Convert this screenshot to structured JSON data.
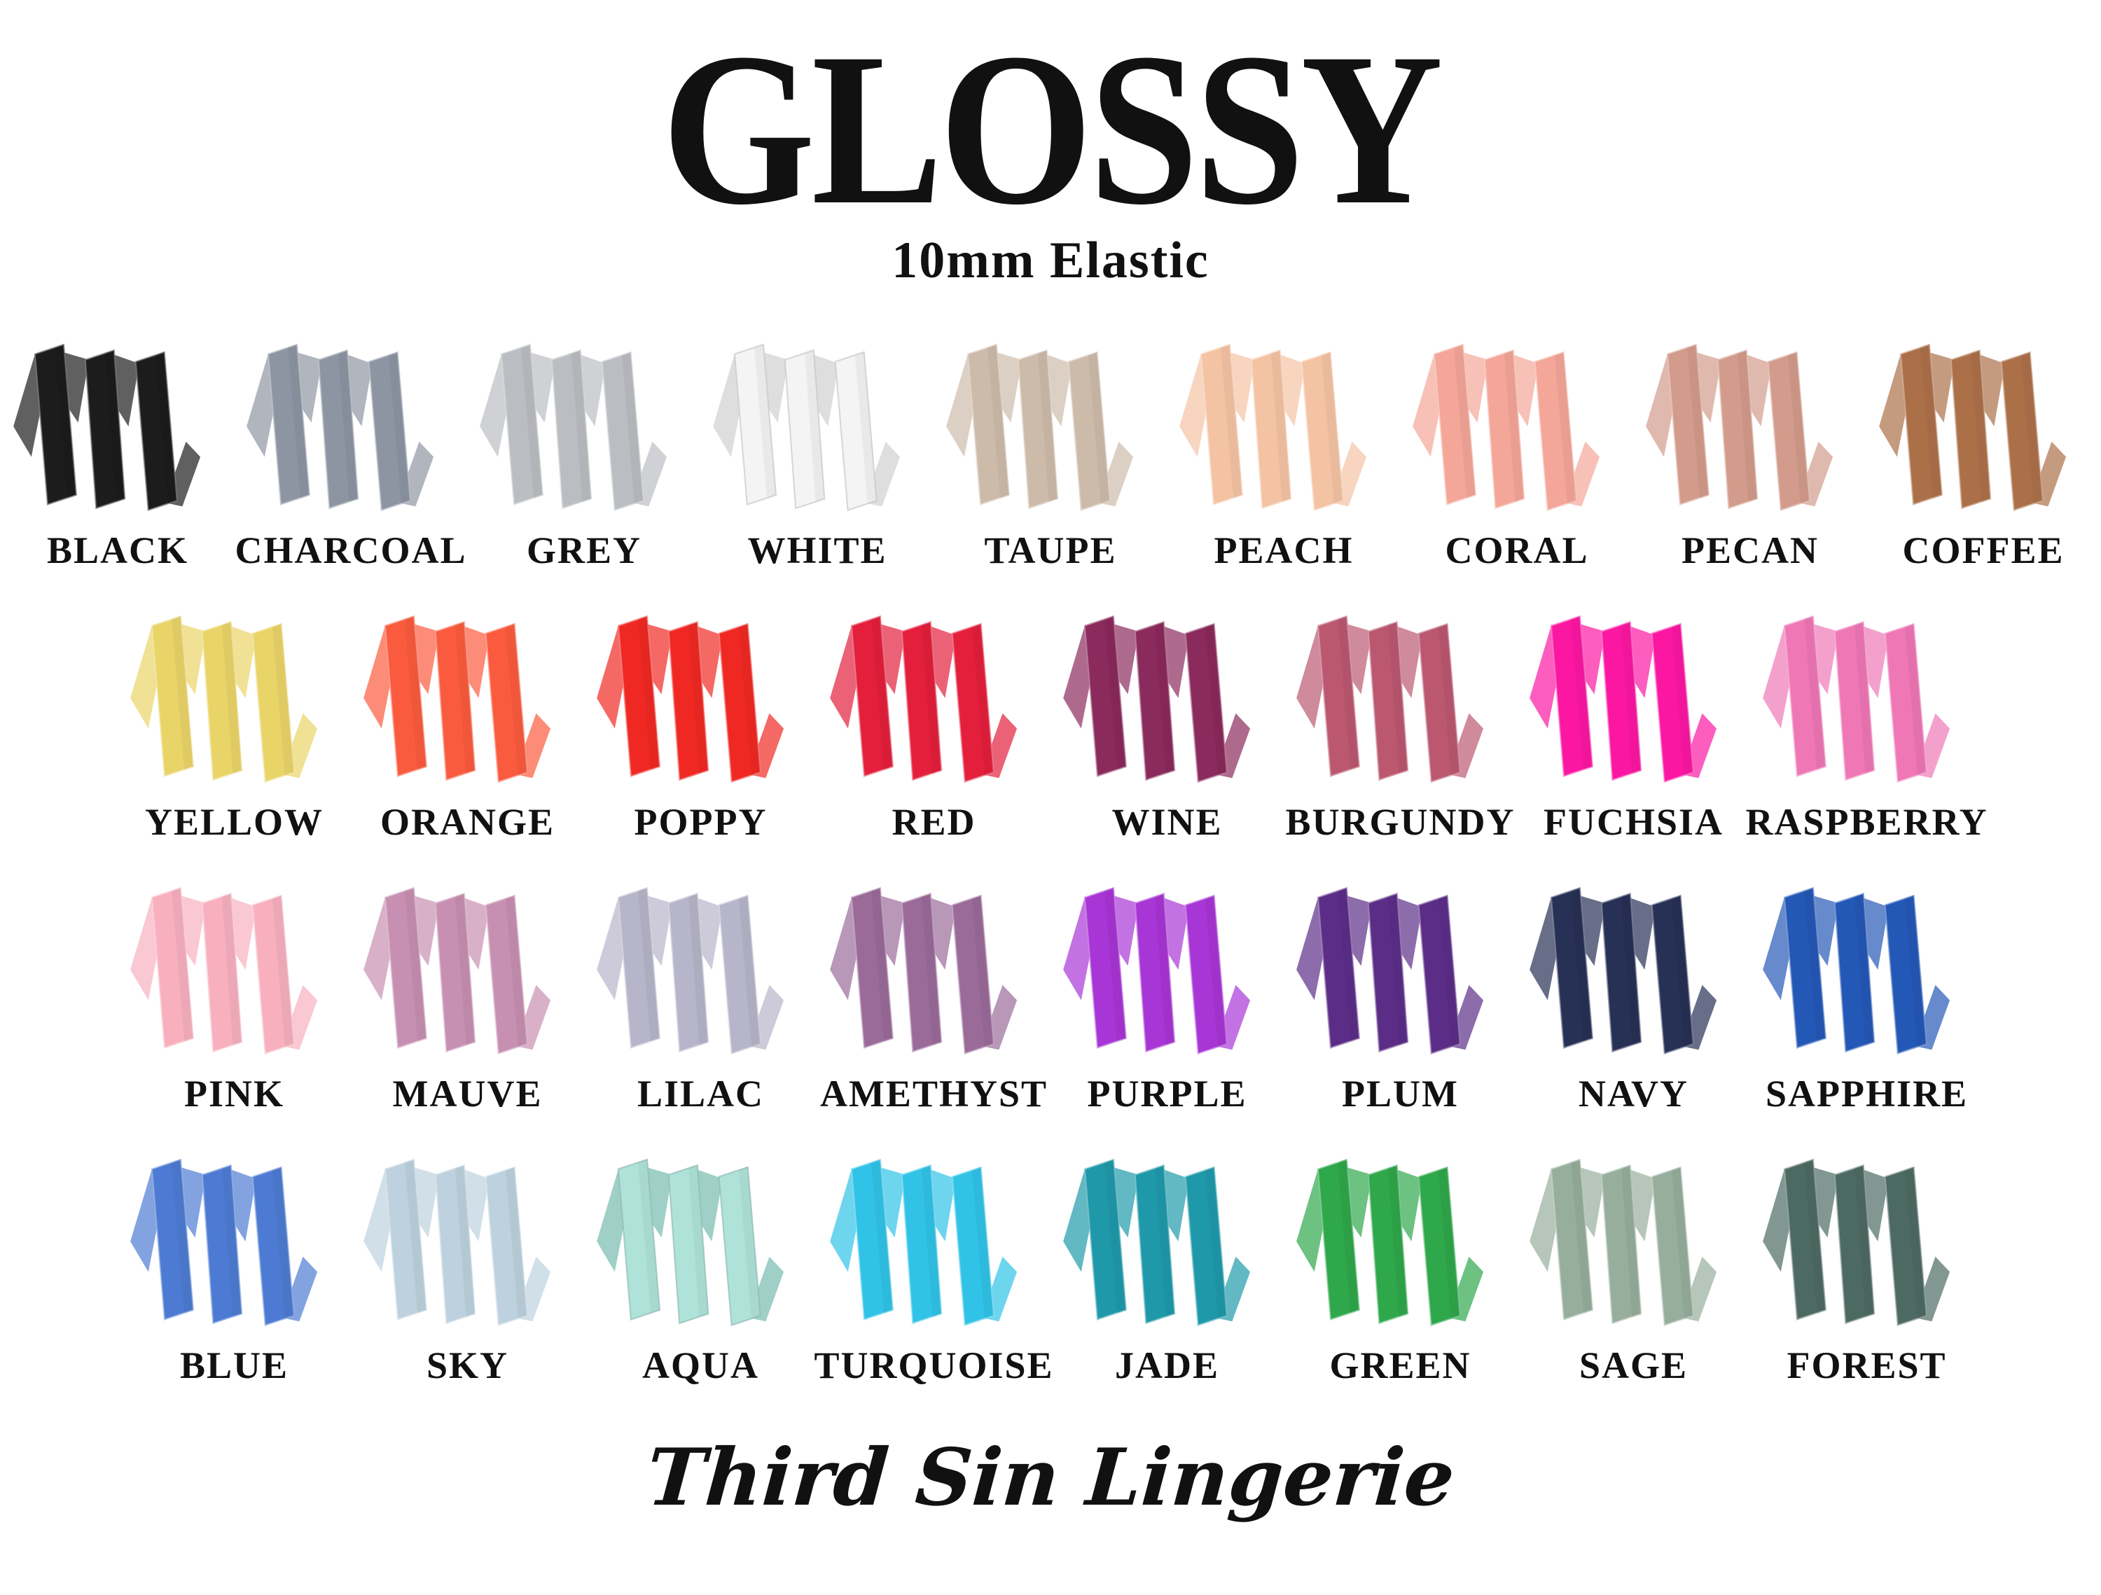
{
  "title": "GLOSSY",
  "subtitle": "10mm Elastic",
  "footer": "Third Sin Lingerie",
  "rows": [
    {
      "items": [
        {
          "label": "BLACK",
          "color": "#1c1c1c"
        },
        {
          "label": "CHARCOAL",
          "color": "#8e95a2"
        },
        {
          "label": "GREY",
          "color": "#babdc1"
        },
        {
          "label": "WHITE",
          "color": "#f4f4f4"
        },
        {
          "label": "TAUPE",
          "color": "#cdbbaa"
        },
        {
          "label": "PEACH",
          "color": "#f4c3a3"
        },
        {
          "label": "CORAL",
          "color": "#f4a698"
        },
        {
          "label": "PECAN",
          "color": "#d39b8b"
        },
        {
          "label": "COFFEE",
          "color": "#ac7049"
        }
      ]
    },
    {
      "items": [
        {
          "label": "YELLOW",
          "color": "#e9d468"
        },
        {
          "label": "ORANGE",
          "color": "#fa5a3d"
        },
        {
          "label": "POPPY",
          "color": "#f02823"
        },
        {
          "label": "RED",
          "color": "#e31f3c"
        },
        {
          "label": "WINE",
          "color": "#8b2a5c"
        },
        {
          "label": "BURGUNDY",
          "color": "#bb5870"
        },
        {
          "label": "FUCHSIA",
          "color": "#fb17a2"
        },
        {
          "label": "RASPBERRY",
          "color": "#ef77b6"
        }
      ]
    },
    {
      "items": [
        {
          "label": "PINK",
          "color": "#f8b0bf"
        },
        {
          "label": "MAUVE",
          "color": "#c78fb1"
        },
        {
          "label": "LILAC",
          "color": "#b7b5c9"
        },
        {
          "label": "AMETHYST",
          "color": "#9a6a99"
        },
        {
          "label": "PURPLE",
          "color": "#a835d5"
        },
        {
          "label": "PLUM",
          "color": "#5c2d87"
        },
        {
          "label": "NAVY",
          "color": "#273055"
        },
        {
          "label": "SAPPHIRE",
          "color": "#2458b6"
        }
      ]
    },
    {
      "items": [
        {
          "label": "BLUE",
          "color": "#4d7bd3"
        },
        {
          "label": "SKY",
          "color": "#bdd1de"
        },
        {
          "label": "AQUA",
          "color": "#afe3da"
        },
        {
          "label": "TURQUOISE",
          "color": "#30c3e7"
        },
        {
          "label": "JADE",
          "color": "#1f99a9"
        },
        {
          "label": "GREEN",
          "color": "#2fa74b"
        },
        {
          "label": "SAGE",
          "color": "#97ae9c"
        },
        {
          "label": "FOREST",
          "color": "#4d6a62"
        }
      ]
    }
  ]
}
